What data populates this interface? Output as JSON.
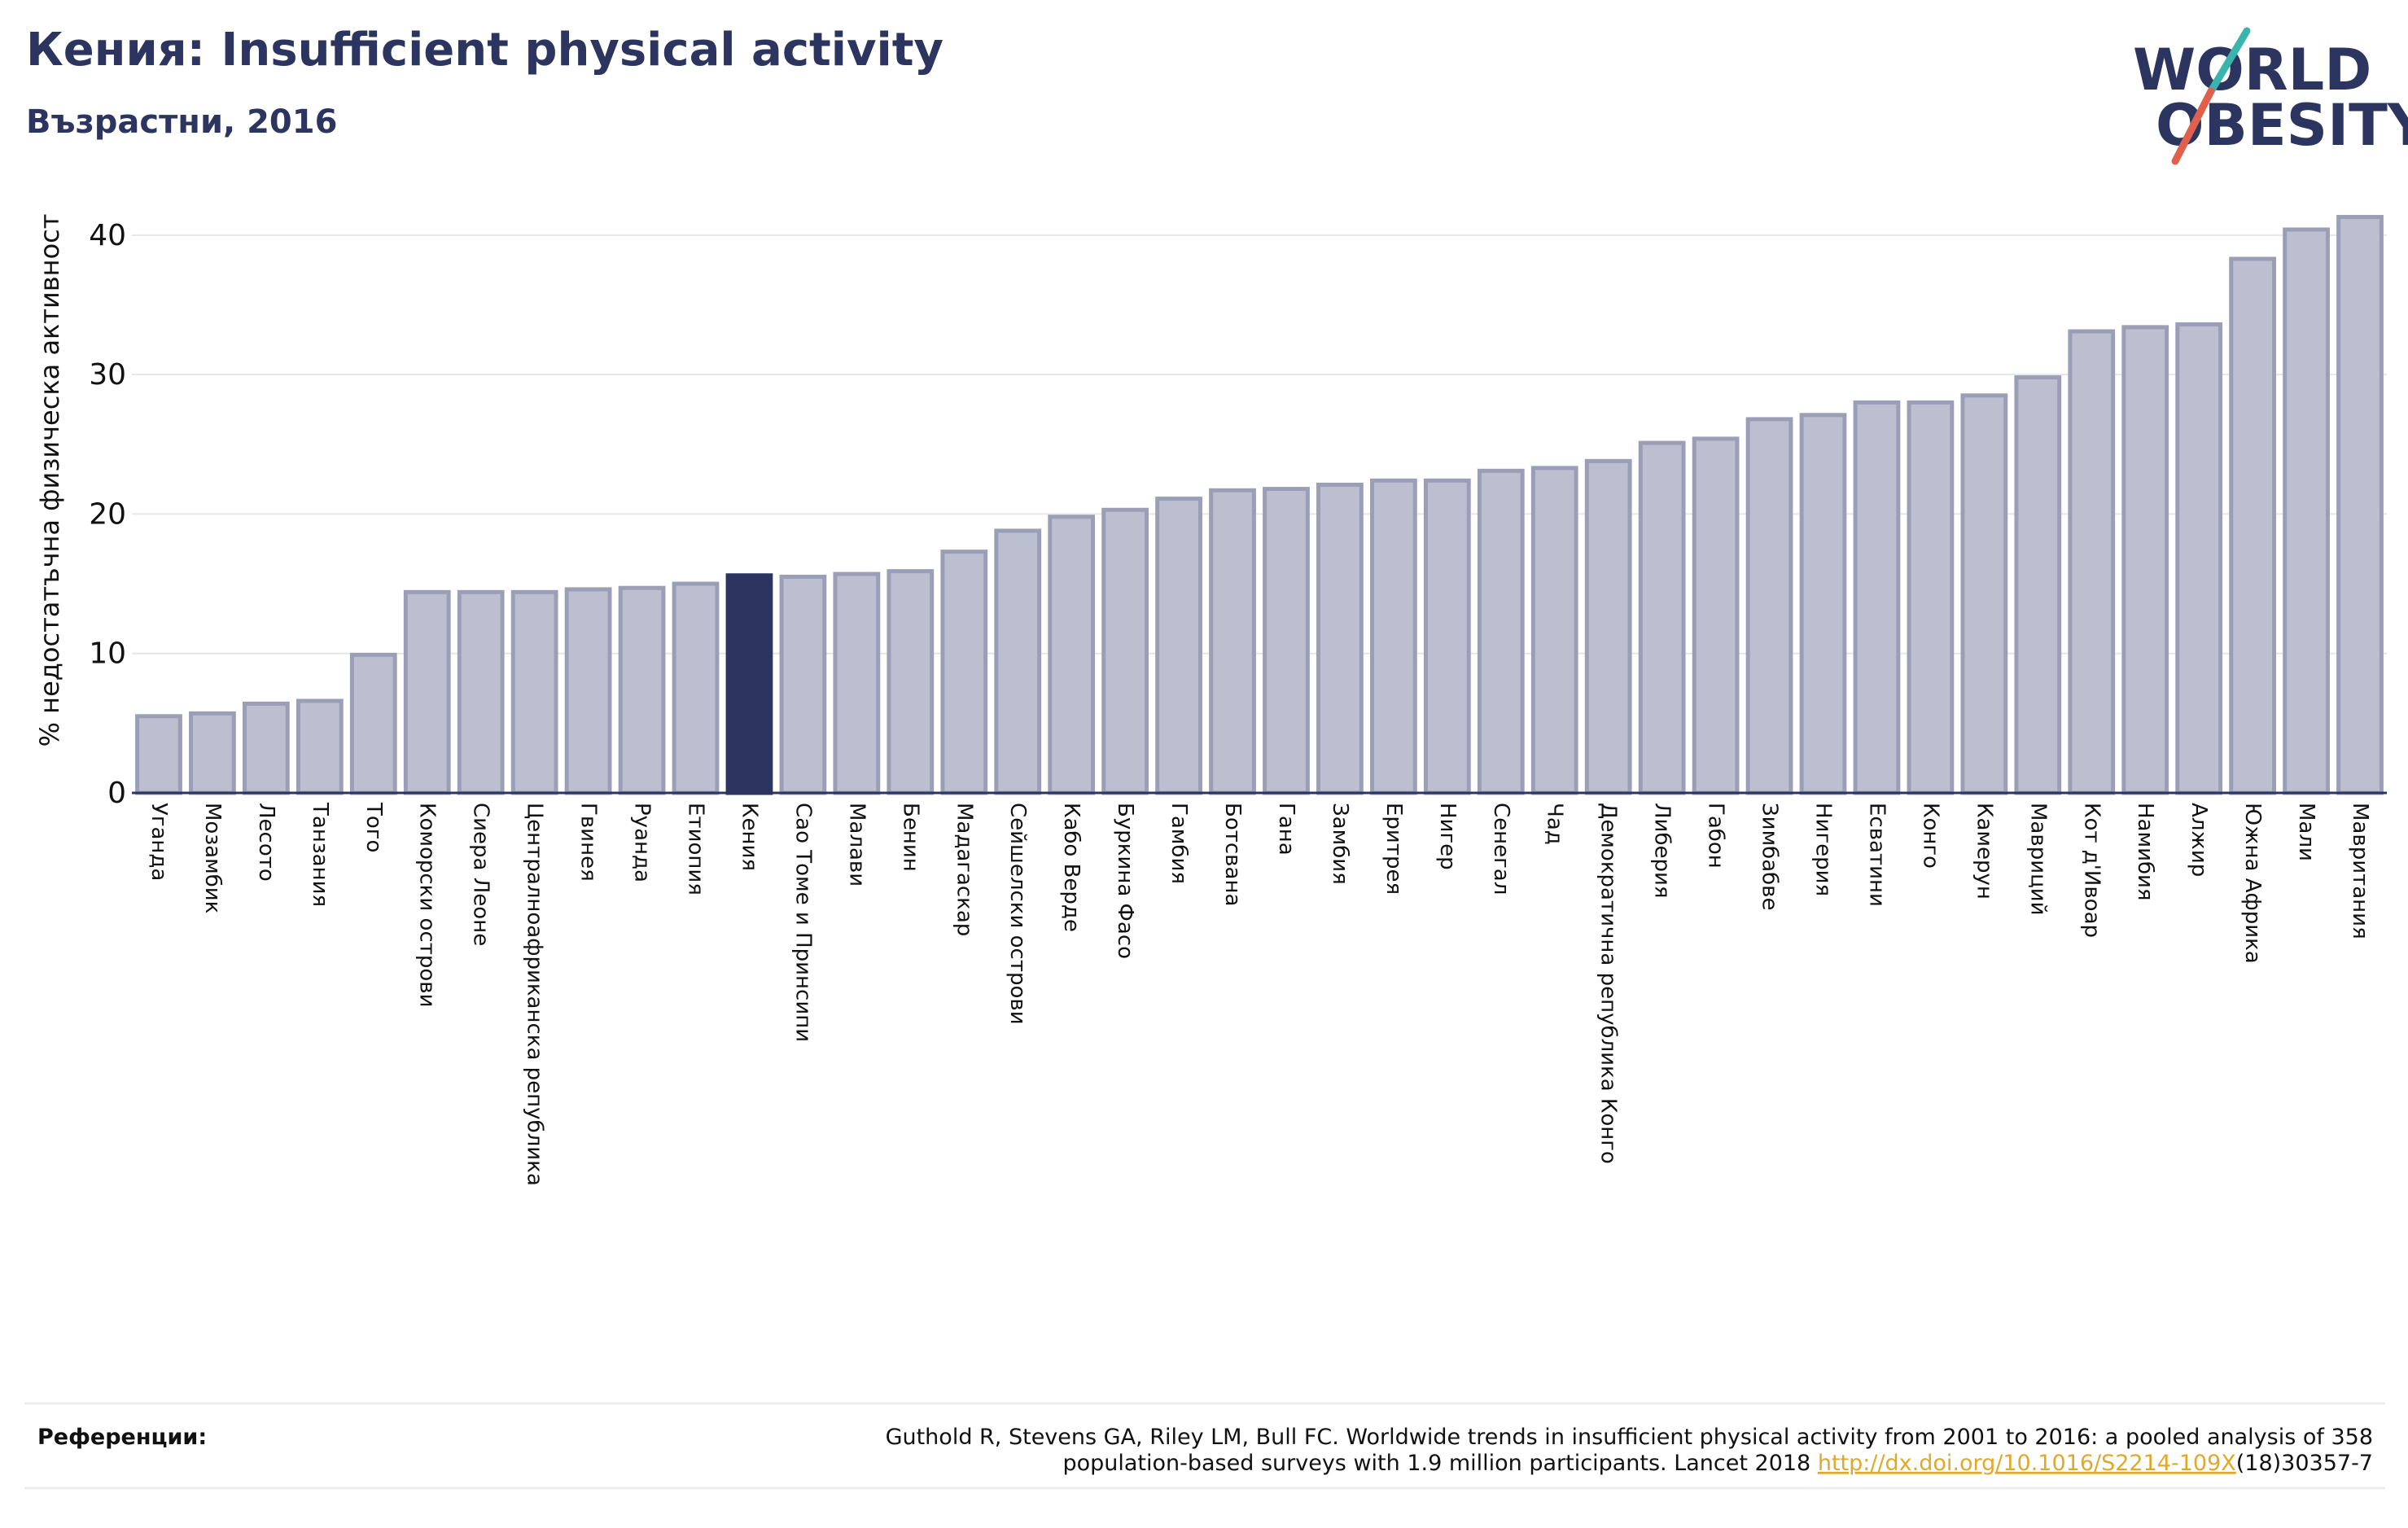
{
  "title": "Кения: Insufficient physical activity",
  "subtitle": "Възрастни, 2016",
  "logo": {
    "line1": "WORLD",
    "line2": "OBESITY"
  },
  "colors": {
    "title": "#2b3560",
    "bar_fill": "#bcbfcf",
    "bar_stroke": "#9a9fb7",
    "highlight": "#2b3560",
    "grid": "#e6e6e6",
    "axis": "#2b3560",
    "link": "#e0a92a",
    "logo_teal": "#3ab5ae",
    "logo_red": "#e0604d"
  },
  "chart_data": {
    "type": "bar",
    "ylabel": "% недостатъчна физическа активност",
    "xlabel": "",
    "ylim": [
      0,
      42.5
    ],
    "yticks": [
      0,
      10,
      20,
      30,
      40
    ],
    "grid": true,
    "highlight": "Кения",
    "categories": [
      "Уганда",
      "Мозамбик",
      "Лесото",
      "Танзания",
      "Того",
      "Коморски острови",
      "Сиера Леоне",
      "Централноафриканска република",
      "Гвинея",
      "Руанда",
      "Етиопия",
      "Кения",
      "Сао Томе и Принсипи",
      "Малави",
      "Бенин",
      "Мадагаскар",
      "Сейшелски острови",
      "Кабо Верде",
      "Буркина Фасо",
      "Гамбия",
      "Ботсвана",
      "Гана",
      "Замбия",
      "Еритрея",
      "Нигер",
      "Сенегал",
      "Чад",
      "Демократична република Конго",
      "Либерия",
      "Габон",
      "Зимбабве",
      "Нигерия",
      "Есватини",
      "Конго",
      "Камерун",
      "Мавриций",
      "Кот д'Ивоар",
      "Намибия",
      "Алжир",
      "Южна Африка",
      "Мали",
      "Мавритания"
    ],
    "values": [
      5.5,
      5.7,
      6.4,
      6.6,
      9.9,
      14.4,
      14.4,
      14.4,
      14.6,
      14.7,
      15.0,
      15.6,
      15.5,
      15.7,
      15.9,
      17.3,
      18.8,
      19.8,
      20.3,
      21.1,
      21.7,
      21.8,
      22.1,
      22.4,
      22.4,
      23.1,
      23.3,
      23.8,
      25.1,
      25.4,
      26.8,
      27.1,
      28.0,
      28.0,
      28.5,
      29.8,
      33.1,
      33.4,
      33.6,
      38.3,
      40.4,
      41.3
    ]
  },
  "references": {
    "label": "Референции:",
    "line1": "Guthold R, Stevens GA, Riley LM, Bull FC. Worldwide trends in insufficient physical activity from 2001 to 2016: a pooled analysis of 358",
    "line2_pre": "population-based surveys with 1.9 million participants. Lancet 2018 ",
    "link": "http://dx.doi.org/10.1016/S2214-109X",
    "line2_post": "(18)30357-7"
  }
}
